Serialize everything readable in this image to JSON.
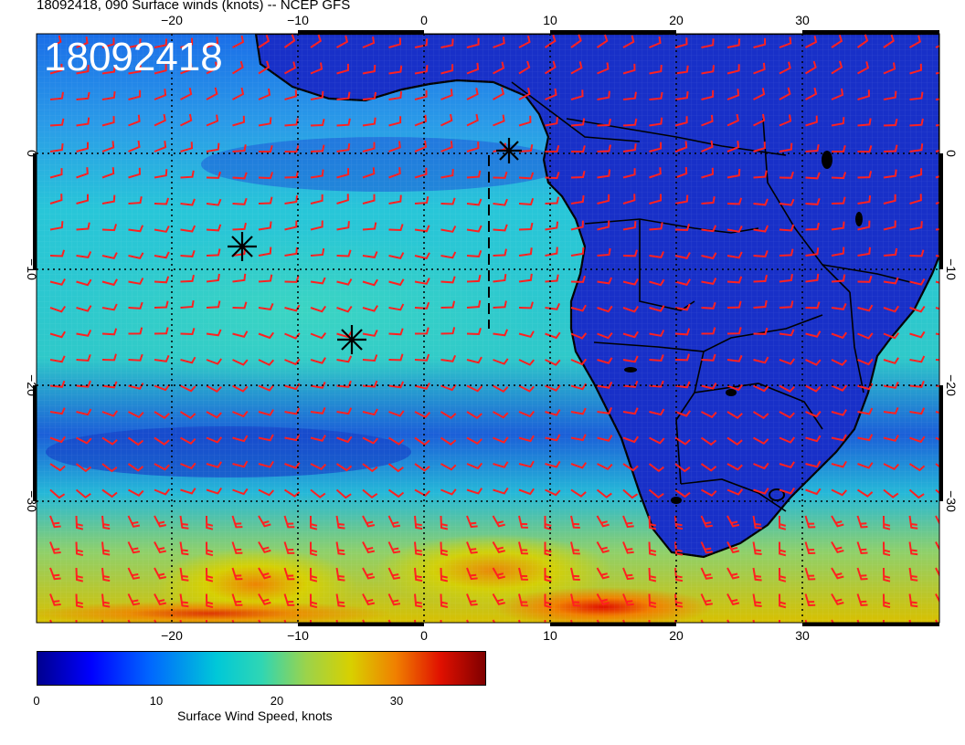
{
  "title": "18092418, 090 Surface winds (knots) -- NCEP GFS",
  "stamp": "18092418",
  "axes": {
    "lon_ticks": [
      "−20",
      "−10",
      "0",
      "10",
      "20",
      "30"
    ],
    "lat_ticks": [
      "0",
      "−10",
      "−20",
      "−30"
    ]
  },
  "colorbar": {
    "ticks": [
      "0",
      "10",
      "20",
      "30"
    ],
    "label": "Surface Wind Speed, knots",
    "colors": [
      "#00008f",
      "#0000ff",
      "#0066ff",
      "#00c8d8",
      "#9bd34b",
      "#d8d000",
      "#f08000",
      "#e01000",
      "#7f0000"
    ]
  },
  "colors": {
    "barb": "#ff2020",
    "coast": "#000000",
    "grid": "#000000"
  }
}
